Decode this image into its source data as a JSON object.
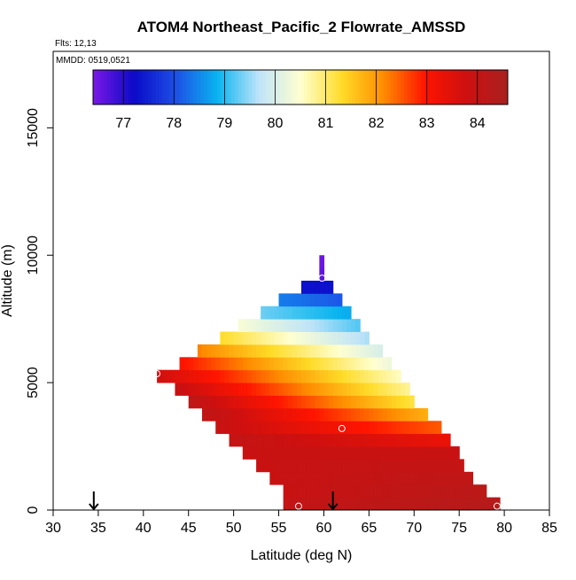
{
  "chart_data": {
    "type": "heatmap",
    "title": "ATOM4 Northeast_Pacific_2 Flowrate_AMSSD",
    "subtitle": "Flts: 12,13",
    "annotation": "MMDD: 0519,0521",
    "xlabel": "Latitude (deg N)",
    "ylabel": "Altitude (m)",
    "xlim": [
      30,
      85
    ],
    "ylim": [
      0,
      18000
    ],
    "xticks": [
      "30",
      "35",
      "40",
      "45",
      "50",
      "55",
      "60",
      "65",
      "70",
      "75",
      "80",
      "85"
    ],
    "yticks": [
      "0",
      "5000",
      "10000",
      "15000"
    ],
    "colorbar": {
      "range": [
        76.4,
        84.6
      ],
      "ticks": [
        "77",
        "78",
        "79",
        "80",
        "81",
        "82",
        "83",
        "84"
      ],
      "stops": [
        "#7a18e6",
        "#0a0ac8",
        "#1e50e6",
        "#08b4f0",
        "#bfe4f8",
        "#ffffd0",
        "#ffdc28",
        "#ff8c00",
        "#ff1400",
        "#cd1010",
        "#aa2020"
      ]
    },
    "rows": [
      {
        "alt": 0,
        "lat_start": 55.5,
        "lat_end": 79.5,
        "value_start": 84.0,
        "value_end": 84.3
      },
      {
        "alt": 500,
        "lat_start": 55.5,
        "lat_end": 78.0,
        "value_start": 83.9,
        "value_end": 84.2
      },
      {
        "alt": 1000,
        "lat_start": 54.0,
        "lat_end": 76.5,
        "value_start": 83.9,
        "value_end": 84.1
      },
      {
        "alt": 1500,
        "lat_start": 52.5,
        "lat_end": 75.5,
        "value_start": 83.9,
        "value_end": 84.0
      },
      {
        "alt": 2000,
        "lat_start": 51.0,
        "lat_end": 75.0,
        "value_start": 83.9,
        "value_end": 83.9
      },
      {
        "alt": 2500,
        "lat_start": 49.5,
        "lat_end": 74.0,
        "value_start": 84.0,
        "value_end": 83.3
      },
      {
        "alt": 3000,
        "lat_start": 48.0,
        "lat_end": 73.0,
        "value_start": 83.9,
        "value_end": 82.5
      },
      {
        "alt": 3500,
        "lat_start": 46.5,
        "lat_end": 71.5,
        "value_start": 84.1,
        "value_end": 81.8
      },
      {
        "alt": 4000,
        "lat_start": 45.0,
        "lat_end": 70.0,
        "value_start": 84.1,
        "value_end": 81.2
      },
      {
        "alt": 4500,
        "lat_start": 43.5,
        "lat_end": 69.5,
        "value_start": 83.9,
        "value_end": 80.8
      },
      {
        "alt": 5000,
        "lat_start": 41.5,
        "lat_end": 68.5,
        "value_start": 83.7,
        "value_end": 80.6
      },
      {
        "alt": 5500,
        "lat_start": 44.0,
        "lat_end": 67.5,
        "value_start": 83.0,
        "value_end": 80.3
      },
      {
        "alt": 6000,
        "lat_start": 46.0,
        "lat_end": 66.5,
        "value_start": 82.2,
        "value_end": 80.0
      },
      {
        "alt": 6500,
        "lat_start": 48.5,
        "lat_end": 65.0,
        "value_start": 81.3,
        "value_end": 79.6
      },
      {
        "alt": 7000,
        "lat_start": 50.5,
        "lat_end": 64.0,
        "value_start": 80.4,
        "value_end": 79.2
      },
      {
        "alt": 7500,
        "lat_start": 53.0,
        "lat_end": 63.0,
        "value_start": 79.3,
        "value_end": 78.8
      },
      {
        "alt": 8000,
        "lat_start": 55.0,
        "lat_end": 62.0,
        "value_start": 78.4,
        "value_end": 78.1
      },
      {
        "alt": 8500,
        "lat_start": 57.5,
        "lat_end": 61.0,
        "value_start": 77.3,
        "value_end": 77.3
      },
      {
        "alt": 9000,
        "lat_start": 59.5,
        "lat_end": 60.0,
        "value_start": 76.6,
        "value_end": 76.6
      },
      {
        "alt": 9500,
        "lat_start": 59.5,
        "lat_end": 60.0,
        "value_start": 76.5,
        "value_end": 76.5
      }
    ],
    "markers": [
      {
        "lat": 41.5,
        "alt": 5350
      },
      {
        "lat": 59.8,
        "alt": 9100
      },
      {
        "lat": 62.0,
        "alt": 3200
      },
      {
        "lat": 57.2,
        "alt": 150
      },
      {
        "lat": 79.2,
        "alt": 150
      }
    ],
    "arrows": [
      {
        "lat": 34.5
      },
      {
        "lat": 61.0
      }
    ]
  }
}
